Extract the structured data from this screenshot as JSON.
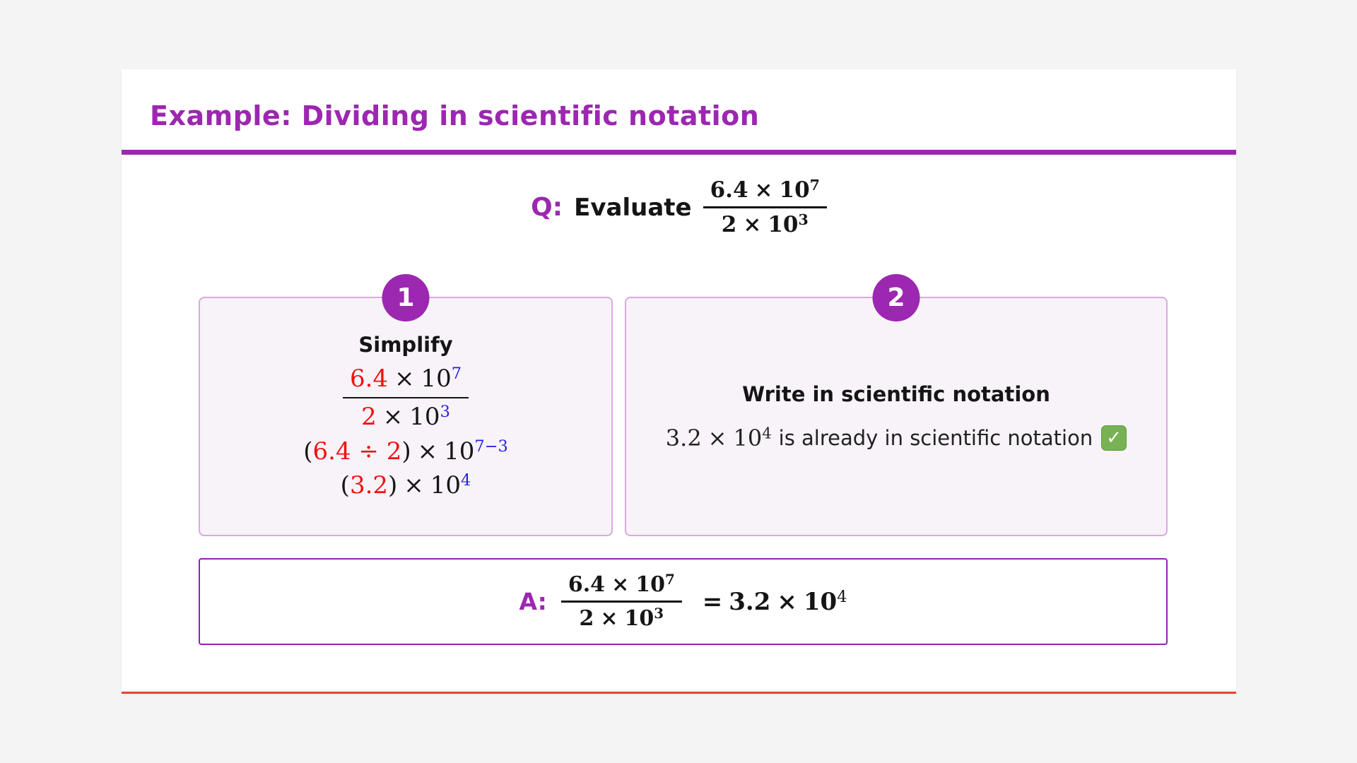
{
  "colors": {
    "purple": "#9C27B0",
    "answer_border": "#8E24AA",
    "red": "#EE1111",
    "blue": "#2222DD",
    "step_bg": "#F8F2F9",
    "step_border": "#D9A9E0",
    "card_bottom_rule": "#E04434",
    "check_green": "#77B255"
  },
  "header": {
    "title": "Example: Dividing in scientific notation"
  },
  "question": {
    "label": "Q:",
    "prompt": "Evaluate",
    "fraction": {
      "num_coef": "6.4",
      "num_times": "×",
      "num_base": "10",
      "num_exp": "7",
      "den_coef": "2",
      "den_times": "×",
      "den_base": "10",
      "den_exp": "3"
    }
  },
  "steps": {
    "step1": {
      "badge": "1",
      "heading": "Simplify",
      "fraction": {
        "num_coef": "6.4",
        "num_times": "×",
        "num_base": "10",
        "num_exp": "7",
        "den_coef": "2",
        "den_times": "×",
        "den_base": "10",
        "den_exp": "3"
      },
      "line2": {
        "open": "(",
        "expr": "6.4 ÷ 2",
        "close": ")",
        "times": "×",
        "base": "10",
        "exp": "7−3"
      },
      "line3": {
        "open": "(",
        "expr": "3.2",
        "close": ")",
        "times": "×",
        "base": "10",
        "exp": "4"
      }
    },
    "step2": {
      "badge": "2",
      "heading": "Write in scientific notation",
      "math_coef": "3.2",
      "math_times": "×",
      "math_base": "10",
      "math_exp": "4",
      "text": "is already in scientific notation",
      "check": "✓"
    }
  },
  "answer": {
    "label": "A:",
    "fraction": {
      "num_coef": "6.4",
      "num_times": "×",
      "num_base": "10",
      "num_exp": "7",
      "den_coef": "2",
      "den_times": "×",
      "den_base": "10",
      "den_exp": "3"
    },
    "equals": "=",
    "result_coef": "3.2",
    "result_times": "×",
    "result_base": "10",
    "result_exp": "4"
  }
}
